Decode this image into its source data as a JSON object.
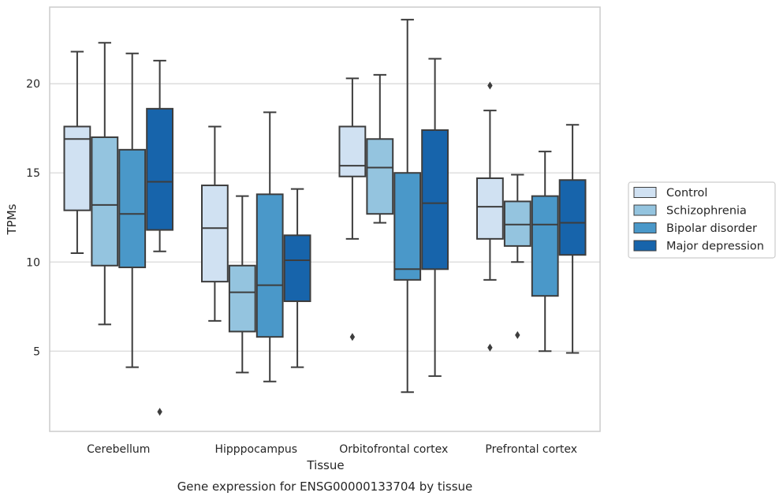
{
  "chart_data": {
    "type": "box",
    "title": "",
    "caption": "Gene expression for ENSG00000133704 by tissue",
    "xlabel": "Tissue",
    "ylabel": "TPMs",
    "ylim": [
      0.5,
      24.3
    ],
    "yticks": [
      5,
      10,
      15,
      20
    ],
    "grid": "horizontal",
    "legend_position": "right",
    "categories": [
      "Cerebellum",
      "Hipppocampus",
      "Orbitofrontal cortex",
      "Prefrontal cortex"
    ],
    "series": [
      {
        "name": "Control",
        "color": "#d0e1f2",
        "boxes": [
          {
            "whislo": 10.5,
            "q1": 12.9,
            "med": 16.9,
            "q3": 17.6,
            "whishi": 21.8,
            "fliers": []
          },
          {
            "whislo": 6.7,
            "q1": 8.9,
            "med": 11.9,
            "q3": 14.3,
            "whishi": 17.6,
            "fliers": []
          },
          {
            "whislo": 11.3,
            "q1": 14.8,
            "med": 15.4,
            "q3": 17.6,
            "whishi": 20.3,
            "fliers": [
              5.8
            ]
          },
          {
            "whislo": 9.0,
            "q1": 11.3,
            "med": 13.1,
            "q3": 14.7,
            "whishi": 18.5,
            "fliers": [
              5.2,
              19.9
            ]
          }
        ]
      },
      {
        "name": "Schizophrenia",
        "color": "#94c4df",
        "boxes": [
          {
            "whislo": 6.5,
            "q1": 9.8,
            "med": 13.2,
            "q3": 17.0,
            "whishi": 22.3,
            "fliers": []
          },
          {
            "whislo": 3.8,
            "q1": 6.1,
            "med": 8.3,
            "q3": 9.8,
            "whishi": 13.7,
            "fliers": []
          },
          {
            "whislo": 12.2,
            "q1": 12.7,
            "med": 15.3,
            "q3": 16.9,
            "whishi": 20.5,
            "fliers": []
          },
          {
            "whislo": 10.0,
            "q1": 10.9,
            "med": 12.1,
            "q3": 13.4,
            "whishi": 14.9,
            "fliers": [
              5.9
            ]
          }
        ]
      },
      {
        "name": "Bipolar disorder",
        "color": "#4a98c9",
        "boxes": [
          {
            "whislo": 4.1,
            "q1": 9.7,
            "med": 12.7,
            "q3": 16.3,
            "whishi": 21.7,
            "fliers": []
          },
          {
            "whislo": 3.3,
            "q1": 5.8,
            "med": 8.7,
            "q3": 13.8,
            "whishi": 18.4,
            "fliers": []
          },
          {
            "whislo": 2.7,
            "q1": 9.0,
            "med": 9.6,
            "q3": 15.0,
            "whishi": 23.6,
            "fliers": []
          },
          {
            "whislo": 5.0,
            "q1": 8.1,
            "med": 12.1,
            "q3": 13.7,
            "whishi": 16.2,
            "fliers": []
          }
        ]
      },
      {
        "name": "Major depression",
        "color": "#1764ab",
        "boxes": [
          {
            "whislo": 10.6,
            "q1": 11.8,
            "med": 14.5,
            "q3": 18.6,
            "whishi": 21.3,
            "fliers": [
              1.6
            ]
          },
          {
            "whislo": 4.1,
            "q1": 7.8,
            "med": 10.1,
            "q3": 11.5,
            "whishi": 14.1,
            "fliers": []
          },
          {
            "whislo": 3.6,
            "q1": 9.6,
            "med": 13.3,
            "q3": 17.4,
            "whishi": 21.4,
            "fliers": []
          },
          {
            "whislo": 4.9,
            "q1": 10.4,
            "med": 12.2,
            "q3": 14.6,
            "whishi": 17.7,
            "fliers": []
          }
        ]
      }
    ]
  }
}
